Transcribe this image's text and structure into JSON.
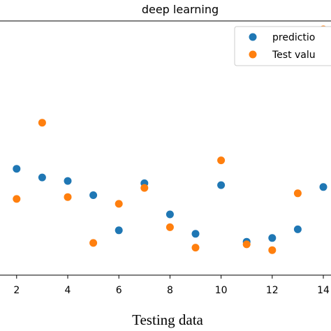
{
  "chart_data": {
    "type": "scatter",
    "title": "deep learning",
    "xlabel": "Testing data",
    "ylabel": "",
    "xlim": [
      1.35,
      14.3
    ],
    "ylim": [
      0,
      1
    ],
    "x_ticks": [
      2,
      4,
      6,
      8,
      10,
      12,
      14
    ],
    "legend_position": "top-right",
    "grid": false,
    "series": [
      {
        "name": "predictio",
        "color": "#1f77b4",
        "x": [
          2,
          3,
          4,
          5,
          6,
          7,
          8,
          9,
          10,
          11,
          12,
          13,
          14
        ],
        "y": [
          0.404,
          0.367,
          0.352,
          0.291,
          0.141,
          0.342,
          0.209,
          0.126,
          0.334,
          0.092,
          0.108,
          0.145,
          0.326
        ]
      },
      {
        "name": "Test valu",
        "color": "#ff7f0e",
        "x": [
          2,
          3,
          4,
          5,
          6,
          7,
          8,
          9,
          10,
          11,
          12,
          13,
          14
        ],
        "y": [
          0.275,
          0.601,
          0.283,
          0.087,
          0.254,
          0.322,
          0.154,
          0.067,
          0.44,
          0.081,
          0.056,
          0.299,
          1.0
        ]
      }
    ]
  }
}
